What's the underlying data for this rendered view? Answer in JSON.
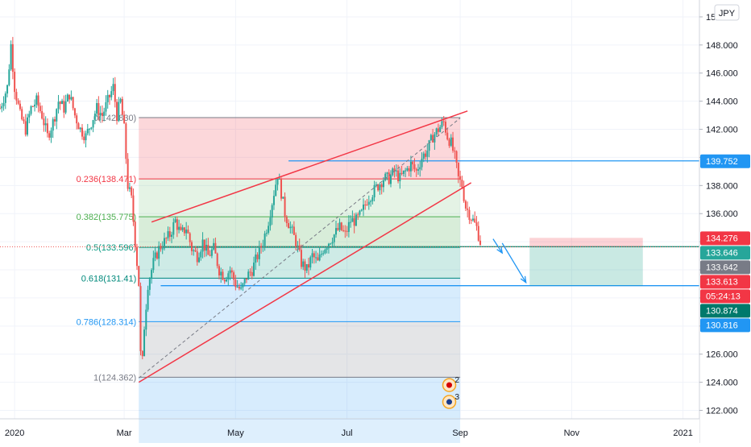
{
  "currency_label": "JPY",
  "chart_data": {
    "type": "candlestick",
    "xlabel": "",
    "ylabel": "",
    "ylim": [
      121.4,
      151.2
    ],
    "xlim": [
      -8,
      375
    ],
    "x_ticks": [
      {
        "label": "2020",
        "x": 0
      },
      {
        "label": "Mar",
        "x": 60
      },
      {
        "label": "May",
        "x": 121
      },
      {
        "label": "Jul",
        "x": 182
      },
      {
        "label": "Sep",
        "x": 244
      },
      {
        "label": "Nov",
        "x": 305
      },
      {
        "label": "2021",
        "x": 366
      }
    ],
    "y_ticks": [
      "122.000",
      "124.000",
      "126.000",
      "128.000",
      "130.000",
      "132.000",
      "134.000",
      "136.000",
      "138.000",
      "140.000",
      "142.000",
      "144.000",
      "146.000",
      "148.000",
      "15"
    ],
    "fib_levels": [
      {
        "label": "0(142.830)",
        "ratio": 0,
        "value": 142.83,
        "color": "#787b86"
      },
      {
        "label": "0.236(138.471)",
        "ratio": 0.236,
        "value": 138.471,
        "color": "#f23645"
      },
      {
        "label": "0.382(135.775)",
        "ratio": 0.382,
        "value": 135.775,
        "color": "#4caf50"
      },
      {
        "label": "0.5(133.596)",
        "ratio": 0.5,
        "value": 133.596,
        "color": "#089981"
      },
      {
        "label": "0.618(131.41)",
        "ratio": 0.618,
        "value": 131.41,
        "color": "#00897b"
      },
      {
        "label": "0.786(128.314)",
        "ratio": 0.786,
        "value": 128.314,
        "color": "#2196f3"
      },
      {
        "label": "1(124.362)",
        "ratio": 1,
        "value": 124.362,
        "color": "#787b86"
      }
    ],
    "fib_range_x": [
      68,
      244
    ],
    "channel": {
      "upper": [
        [
          75,
          135.4
        ],
        [
          248,
          143.3
        ]
      ],
      "lower": [
        [
          68,
          124.0
        ],
        [
          250,
          138.2
        ]
      ]
    },
    "diagonal": [
      [
        68,
        124.3
      ],
      [
        244,
        142.8
      ]
    ],
    "horizontal_lines": [
      {
        "value": 139.752,
        "x_from": 150,
        "color": "#2196f3"
      },
      {
        "value": 133.646,
        "x_from": 80,
        "color": "#089981"
      },
      {
        "value": 130.874,
        "x_from": 80,
        "color": "#2196f3"
      }
    ],
    "position_box": {
      "x_from": 282,
      "x_to": 344,
      "entry": 133.646,
      "stop": 134.276,
      "target": 130.874
    },
    "projection_arrows": [
      [
        [
          262,
          134.2
        ],
        [
          267,
          133.2
        ]
      ],
      [
        [
          267,
          133.9
        ],
        [
          280,
          131.1
        ]
      ]
    ],
    "current_price": 133.642,
    "price_labels": [
      {
        "text": "139.752",
        "value": 139.752,
        "bg": "#2196f3"
      },
      {
        "text": "134.276",
        "value": 134.276,
        "bg": "#f23645"
      },
      {
        "text": "133.646",
        "value": 133.646,
        "bg": "#26a69a"
      },
      {
        "text": "133.642",
        "value": 133.642,
        "bg": "#787b86"
      },
      {
        "text": "133.613",
        "value": 133.613,
        "bg": "#f23645"
      },
      {
        "text": "05:24:13",
        "value": 132.62,
        "bg": "#f23645"
      },
      {
        "text": "130.874",
        "value": 130.874,
        "bg": "#00796b"
      },
      {
        "text": "130.816",
        "value": 130.816,
        "bg": "#2196f3"
      }
    ],
    "events": [
      {
        "label": "2",
        "x": 238,
        "value": 123.8
      },
      {
        "label": "3",
        "x": 238,
        "value": 122.6
      }
    ],
    "price_path": [
      [
        -8,
        143.5
      ],
      [
        -4,
        145
      ],
      [
        -2,
        148
      ],
      [
        0,
        145
      ],
      [
        3,
        143
      ],
      [
        6,
        142
      ],
      [
        9,
        143.5
      ],
      [
        12,
        144
      ],
      [
        15,
        143
      ],
      [
        18,
        141.5
      ],
      [
        21,
        142.5
      ],
      [
        24,
        144
      ],
      [
        27,
        143.5
      ],
      [
        30,
        144.5
      ],
      [
        33,
        143
      ],
      [
        36,
        142
      ],
      [
        39,
        141.5
      ],
      [
        42,
        142.5
      ],
      [
        45,
        143.5
      ],
      [
        48,
        143
      ],
      [
        51,
        144
      ],
      [
        54,
        145
      ],
      [
        56,
        143
      ],
      [
        58,
        144
      ],
      [
        60,
        142
      ],
      [
        62,
        138
      ],
      [
        64,
        137
      ],
      [
        66,
        134
      ],
      [
        68,
        131
      ],
      [
        69,
        126
      ],
      [
        70,
        125.5
      ],
      [
        71,
        128
      ],
      [
        73,
        131
      ],
      [
        76,
        132.5
      ],
      [
        79,
        133.5
      ],
      [
        82,
        134
      ],
      [
        85,
        134.5
      ],
      [
        88,
        135.5
      ],
      [
        91,
        134.5
      ],
      [
        94,
        135
      ],
      [
        97,
        133.5
      ],
      [
        100,
        133
      ],
      [
        103,
        134
      ],
      [
        106,
        133
      ],
      [
        109,
        133.5
      ],
      [
        112,
        132
      ],
      [
        115,
        131.5
      ],
      [
        118,
        132
      ],
      [
        121,
        131
      ],
      [
        124,
        130.5
      ],
      [
        127,
        131.5
      ],
      [
        130,
        132
      ],
      [
        133,
        133
      ],
      [
        136,
        134
      ],
      [
        139,
        135.5
      ],
      [
        142,
        137.5
      ],
      [
        144,
        138.8
      ],
      [
        146,
        137.5
      ],
      [
        148,
        136
      ],
      [
        151,
        135
      ],
      [
        154,
        134
      ],
      [
        157,
        132.5
      ],
      [
        160,
        132
      ],
      [
        163,
        133
      ],
      [
        166,
        132.5
      ],
      [
        169,
        133.5
      ],
      [
        172,
        134
      ],
      [
        175,
        134.5
      ],
      [
        178,
        135
      ],
      [
        181,
        134.5
      ],
      [
        184,
        135.5
      ],
      [
        187,
        135.5
      ],
      [
        190,
        136
      ],
      [
        193,
        137
      ],
      [
        196,
        137.5
      ],
      [
        199,
        138
      ],
      [
        202,
        138.5
      ],
      [
        205,
        138.5
      ],
      [
        208,
        139
      ],
      [
        211,
        138.5
      ],
      [
        214,
        139
      ],
      [
        217,
        139.5
      ],
      [
        220,
        139
      ],
      [
        223,
        140
      ],
      [
        226,
        140.5
      ],
      [
        229,
        141.5
      ],
      [
        232,
        142
      ],
      [
        235,
        142.5
      ],
      [
        237,
        141.5
      ],
      [
        239,
        141
      ],
      [
        241,
        140
      ],
      [
        243,
        138.5
      ],
      [
        245,
        138
      ],
      [
        247,
        136.5
      ],
      [
        249,
        136
      ],
      [
        251,
        135.5
      ],
      [
        253,
        135
      ],
      [
        255,
        134
      ]
    ]
  }
}
